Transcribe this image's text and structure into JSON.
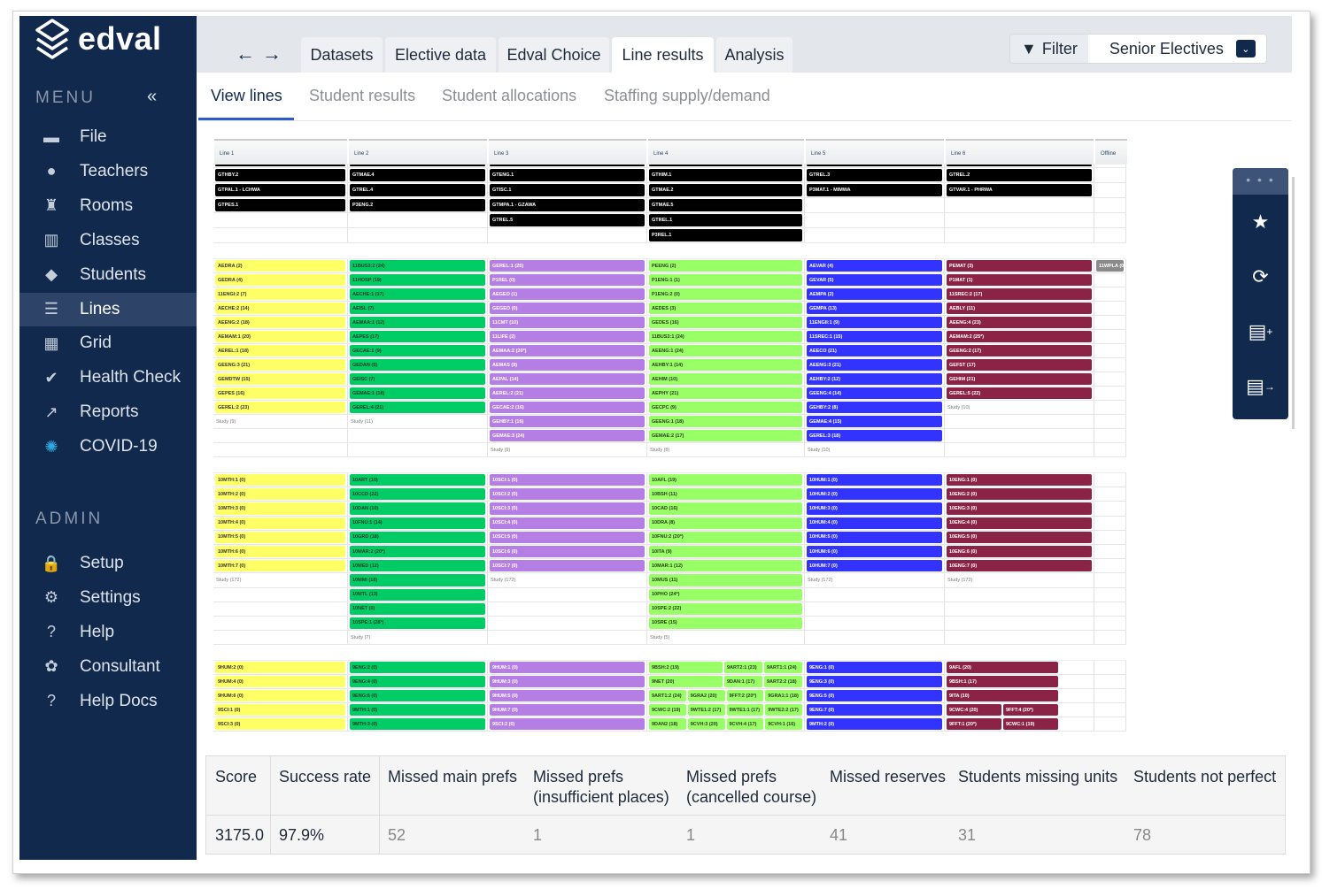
{
  "app": {
    "name": "edval"
  },
  "sidebar": {
    "menu_label": "MENU",
    "collapse_icon": "chevrons-left-icon",
    "admin_label": "ADMIN",
    "items": [
      {
        "label": "File",
        "icon": "folder-icon"
      },
      {
        "label": "Teachers",
        "icon": "user-icon"
      },
      {
        "label": "Rooms",
        "icon": "chair-icon"
      },
      {
        "label": "Classes",
        "icon": "book-icon"
      },
      {
        "label": "Students",
        "icon": "graduation-cap-icon"
      },
      {
        "label": "Lines",
        "icon": "lines-icon"
      },
      {
        "label": "Grid",
        "icon": "grid-icon"
      },
      {
        "label": "Health Check",
        "icon": "health-check-icon"
      },
      {
        "label": "Reports",
        "icon": "chart-line-icon"
      },
      {
        "label": "COVID-19",
        "icon": "virus-icon"
      }
    ],
    "admin_items": [
      {
        "label": "Setup",
        "icon": "lock-icon"
      },
      {
        "label": "Settings",
        "icon": "gear-icon"
      },
      {
        "label": "Help",
        "icon": "help-chat-icon"
      },
      {
        "label": "Consultant",
        "icon": "brain-icon"
      },
      {
        "label": "Help Docs",
        "icon": "help-docs-icon"
      }
    ]
  },
  "topbar": {
    "tabs": [
      {
        "label": "Datasets"
      },
      {
        "label": "Elective data"
      },
      {
        "label": "Edval Choice"
      },
      {
        "label": "Line results",
        "active": true
      },
      {
        "label": "Analysis"
      }
    ],
    "filter_label": "Filter",
    "select_value": "Senior Electives"
  },
  "subtabs": [
    {
      "label": "View lines",
      "active": true
    },
    {
      "label": "Student results"
    },
    {
      "label": "Student allocations"
    },
    {
      "label": "Staffing supply/demand"
    }
  ],
  "grid": {
    "headers": [
      "Line 1",
      "Line 2",
      "Line 3",
      "Line 4",
      "Line 5",
      "Line 6",
      "Offline"
    ],
    "colors": [
      "#ffff66",
      "#00cc66",
      "#b57ee5",
      "#99ff66",
      "#3333ff",
      "#8b2346",
      "#8a8a8a"
    ],
    "blocks": [
      {
        "black": true,
        "columns": [
          {
            "rows": [
              "GTHBY.2",
              "GTPAL.1 - LCHWA",
              "GTPES.1"
            ]
          },
          {
            "rows": [
              "GTMAE.4",
              "GTREL.4",
              "P3ENG.2"
            ]
          },
          {
            "rows": [
              "GTENG.1",
              "GTISC.1",
              "GTMPA.1 - GZAWA",
              "GTREL.5"
            ]
          },
          {
            "rows": [
              "GTHIM.1",
              "GTMAE.2",
              "GTMAE.5",
              "GTREL.1",
              "P3REL.1"
            ]
          },
          {
            "rows": [
              "GTREL.3",
              "P3MAT.1 - MIMWA"
            ]
          },
          {
            "rows": [
              "GTREL.2",
              "GTVAR.1 - PHRWA"
            ]
          },
          {
            "rows": []
          }
        ]
      },
      {
        "columns": [
          {
            "rows": [
              "AEDRA (2)",
              "GEDRA (4)",
              "11ENGI:2 (7)",
              "AECHE:2 (14)",
              "AEENG:2 (18)",
              "AEMAM:1 (20)",
              "AEREL:1 (18)",
              "GEENG:3 (21)",
              "GEMDTW (15)",
              "GEPES (16)",
              "GEREL:2 (23)"
            ],
            "study": "Study (9)"
          },
          {
            "rows": [
              "11BUS3:2 (24)",
              "11HOSP (19)",
              "AECHE:1 (17)",
              "AEISL (7)",
              "AEMAA:1 (12)",
              "AEPES (17)",
              "GECAE:1 (9)",
              "GEDAN (5)",
              "GEISC (7)",
              "GEMAE:1 (18)",
              "GEREL:4 (21)"
            ],
            "study": "Study (11)"
          },
          {
            "rows": [
              "GEREL:1 (25)",
              "P1REL (0)",
              "AEGEO (1)",
              "GEGEO (0)",
              "11CMT (10)",
              "11LIFE (2)",
              "AEMAA:2 (20*)",
              "AEMAS (9)",
              "AEPAL (14)",
              "AEREL:2 (21)",
              "GECAE:2 (16)",
              "GEHBY:1 (16)",
              "GEMAE:3 (24)"
            ],
            "study": "Study (9)"
          },
          {
            "rows": [
              "PEENG (2)",
              "P1ENG:1 (1)",
              "P1ENG:2 (0)",
              "AEDES (3)",
              "GEDES (16)",
              "11BUS3:1 (24)",
              "AEENG:1 (24)",
              "AEHBY:1 (14)",
              "AEHIM (10)",
              "AEPHY (21)",
              "GECPC (9)",
              "GEENG:1 (18)",
              "GEMAE:2 (17)"
            ],
            "study": "Study (8)"
          },
          {
            "rows": [
              "AEVAR (4)",
              "GEVAR (5)",
              "AEMPA (2)",
              "GEMPA (13)",
              "11ENGII:1 (9)",
              "11SREC:1 (15)",
              "AEECO (21)",
              "AEENG:3 (21)",
              "AEHBY:2 (12)",
              "GEENG:4 (14)",
              "GEHBY:2 (8)",
              "GEMAE:4 (15)",
              "GEREL:3 (18)"
            ],
            "study": "Study (10)"
          },
          {
            "rows": [
              "PEMAT (3)",
              "P1MAT (1)",
              "11SREC:2 (17)",
              "AEBLY (11)",
              "AEENG:4 (23)",
              "AEMAM:2 (25*)",
              "GEENG:2 (17)",
              "GEFST (17)",
              "GEHIM (21)",
              "GEREL:5 (22)"
            ],
            "study": "Study (10)"
          },
          {
            "rows": [
              "11WPLA (0)"
            ]
          }
        ]
      },
      {
        "columns": [
          {
            "rows": [
              "10MTH:1 (0)",
              "10MTH:2 (0)",
              "10MTH:3 (0)",
              "10MTH:4 (0)",
              "10MTH:5 (0)",
              "10MTH:6 (0)",
              "10MTH:7 (0)"
            ],
            "study": "Study (172)"
          },
          {
            "rows": [
              "10ART (10)",
              "10CCD (22)",
              "10DAN (10)",
              "10FNU:1 (14)",
              "10GRD (18)",
              "10MAR:2 (20*)",
              "10MED (12)",
              "10MMI (18)",
              "10MTL (13)",
              "10NET (0)",
              "10SPE:1 (28*)"
            ],
            "study": "Study (7)"
          },
          {
            "rows": [
              "10SCI:1 (0)",
              "10SCI:2 (0)",
              "10SCI:3 (0)",
              "10SCI:4 (0)",
              "10SCI:5 (0)",
              "10SCI:6 (0)",
              "10SCI:7 (0)"
            ],
            "study": "Study (172)"
          },
          {
            "rows": [
              "10AFL (19)",
              "10BSH (11)",
              "10CAD (16)",
              "10DRA (8)",
              "10FNU:2 (20*)",
              "10ITA (9)",
              "10MAR:1 (12)",
              "10MUS (11)",
              "10PHO (24*)",
              "10SPE:2 (22)",
              "10SRE (15)"
            ],
            "study": "Study (5)"
          },
          {
            "rows": [
              "10HUM:1 (0)",
              "10HUM:2 (0)",
              "10HUM:3 (0)",
              "10HUM:4 (0)",
              "10HUM:5 (0)",
              "10HUM:6 (0)",
              "10HUM:7 (0)"
            ],
            "study": "Study (172)"
          },
          {
            "rows": [
              "10ENG:1 (0)",
              "10ENG:2 (0)",
              "10ENG:3 (0)",
              "10ENG:4 (0)",
              "10ENG:5 (0)",
              "10ENG:6 (0)",
              "10ENG:7 (0)"
            ],
            "study": "Study (172)"
          },
          {
            "rows": []
          }
        ]
      },
      {
        "columns": [
          {
            "rows": [
              "9HUM:2 (0)",
              "9HUM:4 (0)",
              "9HUM:6 (0)",
              "9SCI:1 (0)",
              "9SCI:3 (0)"
            ]
          },
          {
            "rows": [
              "9ENG:2 (0)",
              "9ENG:4 (0)",
              "9ENG:6 (0)",
              "9MTH:1 (0)",
              "9MTH:3 (0)"
            ]
          },
          {
            "rows": [
              "9HUM:1 (0)",
              "9HUM:3 (0)",
              "9HUM:5 (0)",
              "9HUM:7 (0)",
              "9SCI:2 (0)"
            ]
          },
          {
            "rows": [
              [
                "9BSH:2 (19)",
                "9ART2:1 (23)",
                "9ART1:1 (24)"
              ],
              [
                "9NET (20)",
                "9DAN:1 (17)",
                "9ART2:2 (18)"
              ],
              [
                "9ART1:2 (24)",
                "9GRA2 (20)",
                "9FFT:2 (20*)",
                "9GRA1:1 (18)"
              ],
              [
                "9CWC:2 (19)",
                "9WTE1:2 (17)",
                "9WTE1:1 (17)",
                "9WTE2:2 (17)"
              ],
              [
                "9DAN2 (18)",
                "9CVH:3 (20)",
                "9CVH:4 (17)",
                "9CVH:1 (16)"
              ]
            ]
          },
          {
            "rows": [
              "9ENG:1 (0)",
              "9ENG:3 (0)",
              "9ENG:5 (0)",
              "9ENG:7 (0)",
              "9MTH:2 (0)"
            ]
          },
          {
            "rows": [
              "9AFL (20)",
              "9BSH:1 (17)",
              "9ITA (10)",
              [
                "9CWC:4 (20)",
                "9FFT:4 (20*)"
              ],
              [
                "9FFT:1 (20*)",
                "9CWC:1 (19)"
              ]
            ],
            "narrow": true
          },
          {
            "rows": []
          }
        ]
      }
    ]
  },
  "stats": {
    "headers": [
      "Score",
      "Success rate",
      "Missed main prefs",
      "Missed prefs (insufficient places)",
      "Missed prefs (cancelled course)",
      "Missed reserves",
      "Students missing units",
      "Students not perfect"
    ],
    "values": [
      "3175.0",
      "97.9%",
      "52",
      "1",
      "1",
      "41",
      "31",
      "78"
    ]
  },
  "quick_panel": {
    "icons": [
      "more-dots-icon",
      "star-alert-icon",
      "refresh-icon",
      "add-list-icon",
      "export-list-icon"
    ]
  }
}
